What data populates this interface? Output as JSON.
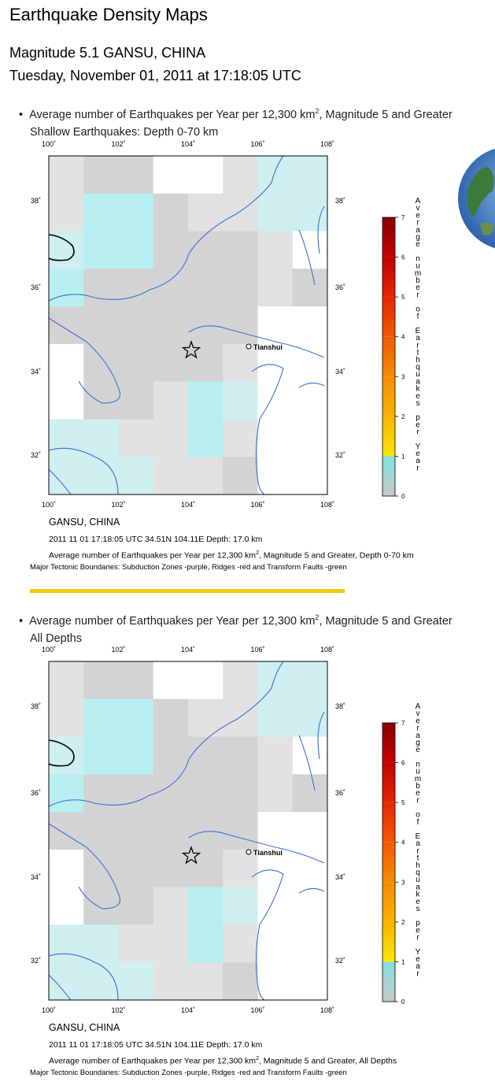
{
  "page": {
    "title": "Earthquake Density Maps",
    "event_title": "Magnitude 5.1 GANSU, CHINA",
    "event_time": "Tuesday, November 01, 2011 at 17:18:05 UTC"
  },
  "colors": {
    "river": "#3c6fd6",
    "coast": "#000000",
    "cell_gray_light": "#e2e2e2",
    "cell_gray_mid": "#d3d3d3",
    "cell_gray_dark": "#c6c6c6",
    "cell_cyan_light": "#cfeff0",
    "cell_cyan": "#b8f0f2",
    "divider": "#f2c812"
  },
  "map_axes": {
    "lon_ticks": [
      "100˚",
      "102˚",
      "104˚",
      "106˚",
      "108˚"
    ],
    "lat_ticks": [
      "38˚",
      "36˚",
      "34˚",
      "32˚"
    ]
  },
  "map_labels": {
    "city": "Tianshui",
    "epicenter_marker": "star-icon"
  },
  "colorbar": {
    "ticks": [
      "7",
      "6",
      "5",
      "4",
      "3",
      "2",
      "1",
      "0"
    ],
    "vertical_label": "Average number of Earthquakes per Year"
  },
  "panels": [
    {
      "bullet_text": "Average number of Earthquakes per Year per 12,300 km",
      "bullet_sup": "2",
      "bullet_tail": ", Magnitude 5 and Greater",
      "depth_text": "Shallow Earthquakes: Depth 0-70 km",
      "caption_location": "GANSU, CHINA",
      "caption_event": "2011 11 01 17:18:05 UTC 34.51N 104.11E Depth: 17.0 km",
      "caption_avg": "Average number of Earthquakes per Year per 12,300 km",
      "caption_avg_sup": "2",
      "caption_avg_tail": ", Magnitude 5 and Greater, Depth 0-70 km",
      "caption_tectonic": "Major Tectonic Boundaries: Subduction Zones -purple, Ridges -red and Transform Faults -green"
    },
    {
      "bullet_text": "Average number of Earthquakes per Year per 12,300 km",
      "bullet_sup": "2",
      "bullet_tail": ", Magnitude 5 and Greater",
      "depth_text": "All Depths",
      "caption_location": "GANSU, CHINA",
      "caption_event": "2011 11 01 17:18:05 UTC 34.51N 104.11E Depth: 17.0 km",
      "caption_avg": "Average number of Earthquakes per Year per 12,300 km",
      "caption_avg_sup": "2",
      "caption_avg_tail": ", Magnitude 5 and Greater, All Depths",
      "caption_tectonic": "Major Tectonic Boundaries: Subduction Zones -purple, Ridges -red and Transform Faults -green"
    }
  ]
}
